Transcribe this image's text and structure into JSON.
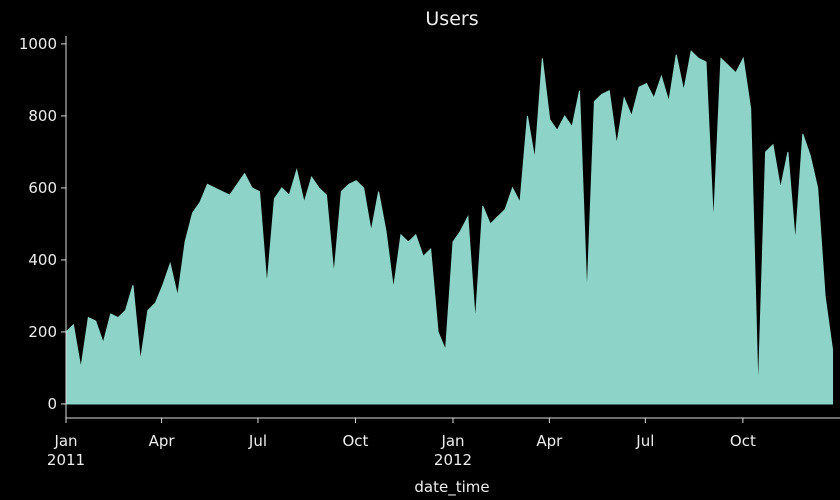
{
  "chart_data": {
    "type": "area",
    "title": "Users",
    "xlabel": "date_time",
    "color": "#8dd3c7",
    "x": [
      2011,
      2011.0192,
      2011.0385,
      2011.0577,
      2011.0769,
      2011.0962,
      2011.1154,
      2011.1346,
      2011.1538,
      2011.1731,
      2011.1923,
      2011.2115,
      2011.2308,
      2011.25,
      2011.2692,
      2011.2885,
      2011.3077,
      2011.3269,
      2011.3462,
      2011.3654,
      2011.3846,
      2011.4038,
      2011.4231,
      2011.4423,
      2011.4615,
      2011.4808,
      2011.5,
      2011.5192,
      2011.5385,
      2011.5577,
      2011.5769,
      2011.5962,
      2011.6154,
      2011.6346,
      2011.6538,
      2011.6731,
      2011.6923,
      2011.7115,
      2011.7308,
      2011.75,
      2011.7692,
      2011.7885,
      2011.8077,
      2011.8269,
      2011.8462,
      2011.8654,
      2011.8846,
      2011.9038,
      2011.9231,
      2011.9423,
      2011.9615,
      2011.9808,
      2012,
      2012.0192,
      2012.0385,
      2012.0577,
      2012.0769,
      2012.0962,
      2012.1154,
      2012.1346,
      2012.1538,
      2012.1731,
      2012.1923,
      2012.2115,
      2012.2308,
      2012.25,
      2012.2692,
      2012.2885,
      2012.3077,
      2012.3269,
      2012.3462,
      2012.3654,
      2012.3846,
      2012.4038,
      2012.4231,
      2012.4423,
      2012.4615,
      2012.4808,
      2012.5,
      2012.5192,
      2012.5385,
      2012.5577,
      2012.5769,
      2012.5962,
      2012.6154,
      2012.6346,
      2012.6538,
      2012.6731,
      2012.6923,
      2012.7115,
      2012.7308,
      2012.75,
      2012.7692,
      2012.7885,
      2012.8077,
      2012.8269,
      2012.8462,
      2012.8654,
      2012.8846,
      2012.9038,
      2012.9231,
      2012.9423,
      2012.9615,
      2012.9808
    ],
    "values": [
      200,
      220,
      100,
      240,
      230,
      170,
      250,
      240,
      260,
      330,
      120,
      260,
      280,
      330,
      390,
      300,
      450,
      530,
      560,
      610,
      600,
      590,
      580,
      610,
      640,
      600,
      590,
      330,
      570,
      600,
      580,
      650,
      560,
      630,
      600,
      580,
      360,
      590,
      610,
      620,
      600,
      480,
      590,
      480,
      320,
      470,
      450,
      470,
      410,
      430,
      200,
      150,
      450,
      480,
      520,
      230,
      550,
      500,
      520,
      540,
      600,
      560,
      800,
      680,
      960,
      790,
      760,
      800,
      770,
      870,
      300,
      840,
      860,
      870,
      720,
      850,
      800,
      880,
      890,
      850,
      910,
      840,
      970,
      870,
      980,
      960,
      950,
      500,
      960,
      940,
      920,
      960,
      820,
      30,
      700,
      720,
      600,
      700,
      450,
      750,
      690,
      600,
      300,
      150
    ],
    "xlim": [
      2011,
      2013
    ],
    "ylim": [
      -39,
      1022
    ],
    "xticks": [
      {
        "value": 2011,
        "label": "Jan\n2011"
      },
      {
        "value": 2011.247,
        "label": "Apr"
      },
      {
        "value": 2011.496,
        "label": "Jul"
      },
      {
        "value": 2011.748,
        "label": "Oct"
      },
      {
        "value": 2012,
        "label": "Jan\n2012"
      },
      {
        "value": 2012.249,
        "label": "Apr"
      },
      {
        "value": 2012.497,
        "label": "Jul"
      },
      {
        "value": 2012.749,
        "label": "Oct"
      }
    ],
    "yticks": [
      0,
      200,
      400,
      600,
      800,
      1000
    ]
  }
}
